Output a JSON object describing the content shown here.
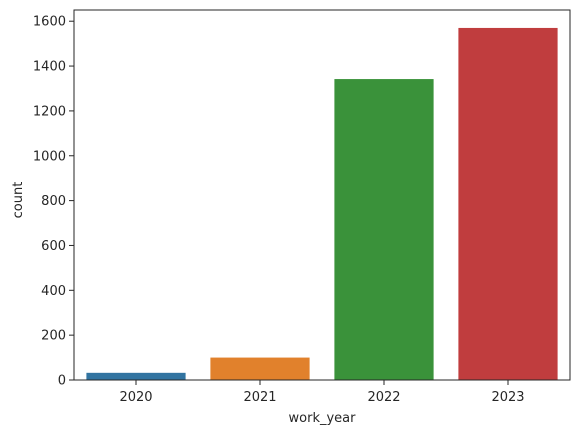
{
  "chart_data": {
    "type": "bar",
    "categories": [
      "2020",
      "2021",
      "2022",
      "2023"
    ],
    "values": [
      32,
      100,
      1342,
      1570
    ],
    "colors": [
      "#3274a1",
      "#e1812c",
      "#3a923a",
      "#c03d3e"
    ],
    "xlabel": "work_year",
    "ylabel": "count",
    "ylim": [
      0,
      1650
    ],
    "yticks": [
      0,
      200,
      400,
      600,
      800,
      1000,
      1200,
      1400,
      1600
    ],
    "grid": false,
    "legend": "none"
  }
}
